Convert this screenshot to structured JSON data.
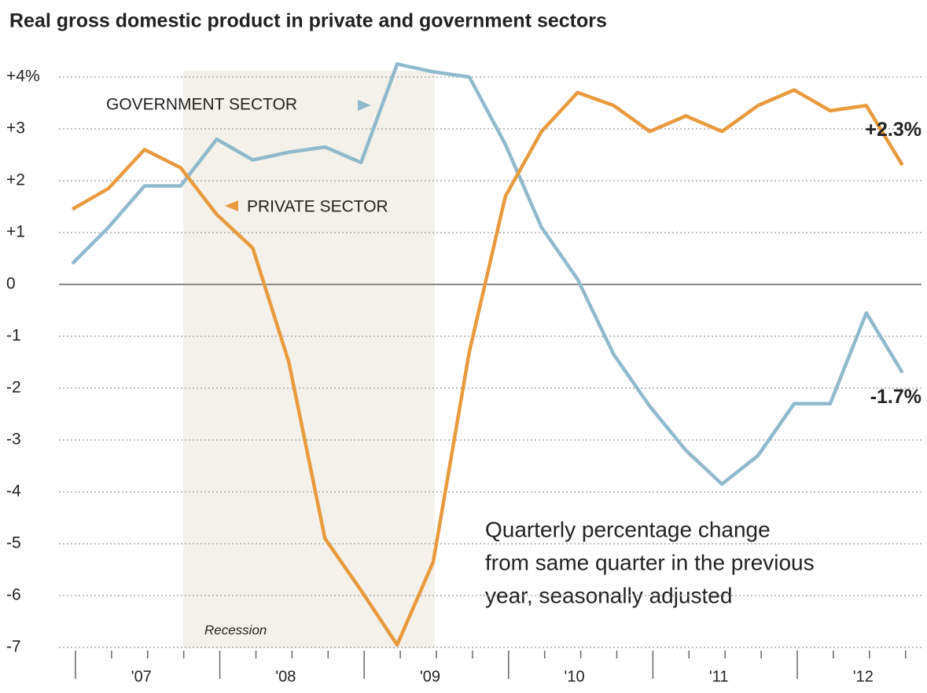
{
  "chart_data": {
    "type": "line",
    "title": "Real gross domestic product in private and government sectors",
    "categories": [
      null,
      null,
      "'07",
      null,
      null,
      null,
      "'08",
      null,
      null,
      null,
      "'09",
      null,
      null,
      null,
      "'10",
      null,
      null,
      null,
      "'11",
      null,
      null,
      null,
      "'12",
      null
    ],
    "series": [
      {
        "name": "GOVERNMENT SECTOR",
        "color": "#8fb9cc",
        "values": [
          0.4,
          1.1,
          1.9,
          1.9,
          2.8,
          2.4,
          2.55,
          2.65,
          2.35,
          4.25,
          4.1,
          4.0,
          2.7,
          1.1,
          0.1,
          -1.35,
          -2.35,
          -3.2,
          -3.85,
          -3.3,
          -2.3,
          -2.3,
          -0.55,
          -1.7
        ],
        "value_labels": [
          null,
          null,
          null,
          null,
          null,
          null,
          null,
          null,
          null,
          null,
          null,
          null,
          null,
          null,
          null,
          null,
          null,
          null,
          null,
          null,
          null,
          null,
          null,
          "-1.7%"
        ]
      },
      {
        "name": "PRIVATE SECTOR",
        "color": "#e89a3c",
        "values": [
          1.45,
          1.85,
          2.6,
          2.25,
          1.35,
          0.7,
          -1.5,
          -4.9,
          -5.9,
          -6.95,
          -5.35,
          -1.3,
          1.7,
          2.95,
          3.7,
          3.45,
          2.95,
          3.25,
          2.95,
          3.45,
          3.75,
          3.35,
          3.45,
          2.3
        ],
        "value_labels": [
          null,
          null,
          null,
          null,
          null,
          null,
          null,
          null,
          null,
          null,
          null,
          null,
          null,
          null,
          null,
          null,
          null,
          null,
          null,
          null,
          null,
          null,
          null,
          "+2.3%"
        ]
      }
    ],
    "ylim": [
      -7,
      4
    ],
    "yticks": [
      {
        "value": 4,
        "label": "+4%"
      },
      {
        "value": 3,
        "label": "+3"
      },
      {
        "value": 2,
        "label": "+2"
      },
      {
        "value": 1,
        "label": "+1"
      },
      0,
      -1,
      -2,
      -3,
      -4,
      -5,
      -6,
      -7
    ],
    "grid": true,
    "annotations": [
      "Recession"
    ],
    "note": [
      "Quarterly percentage change",
      "from same quarter in the previous",
      "year, seasonally adjusted"
    ]
  }
}
